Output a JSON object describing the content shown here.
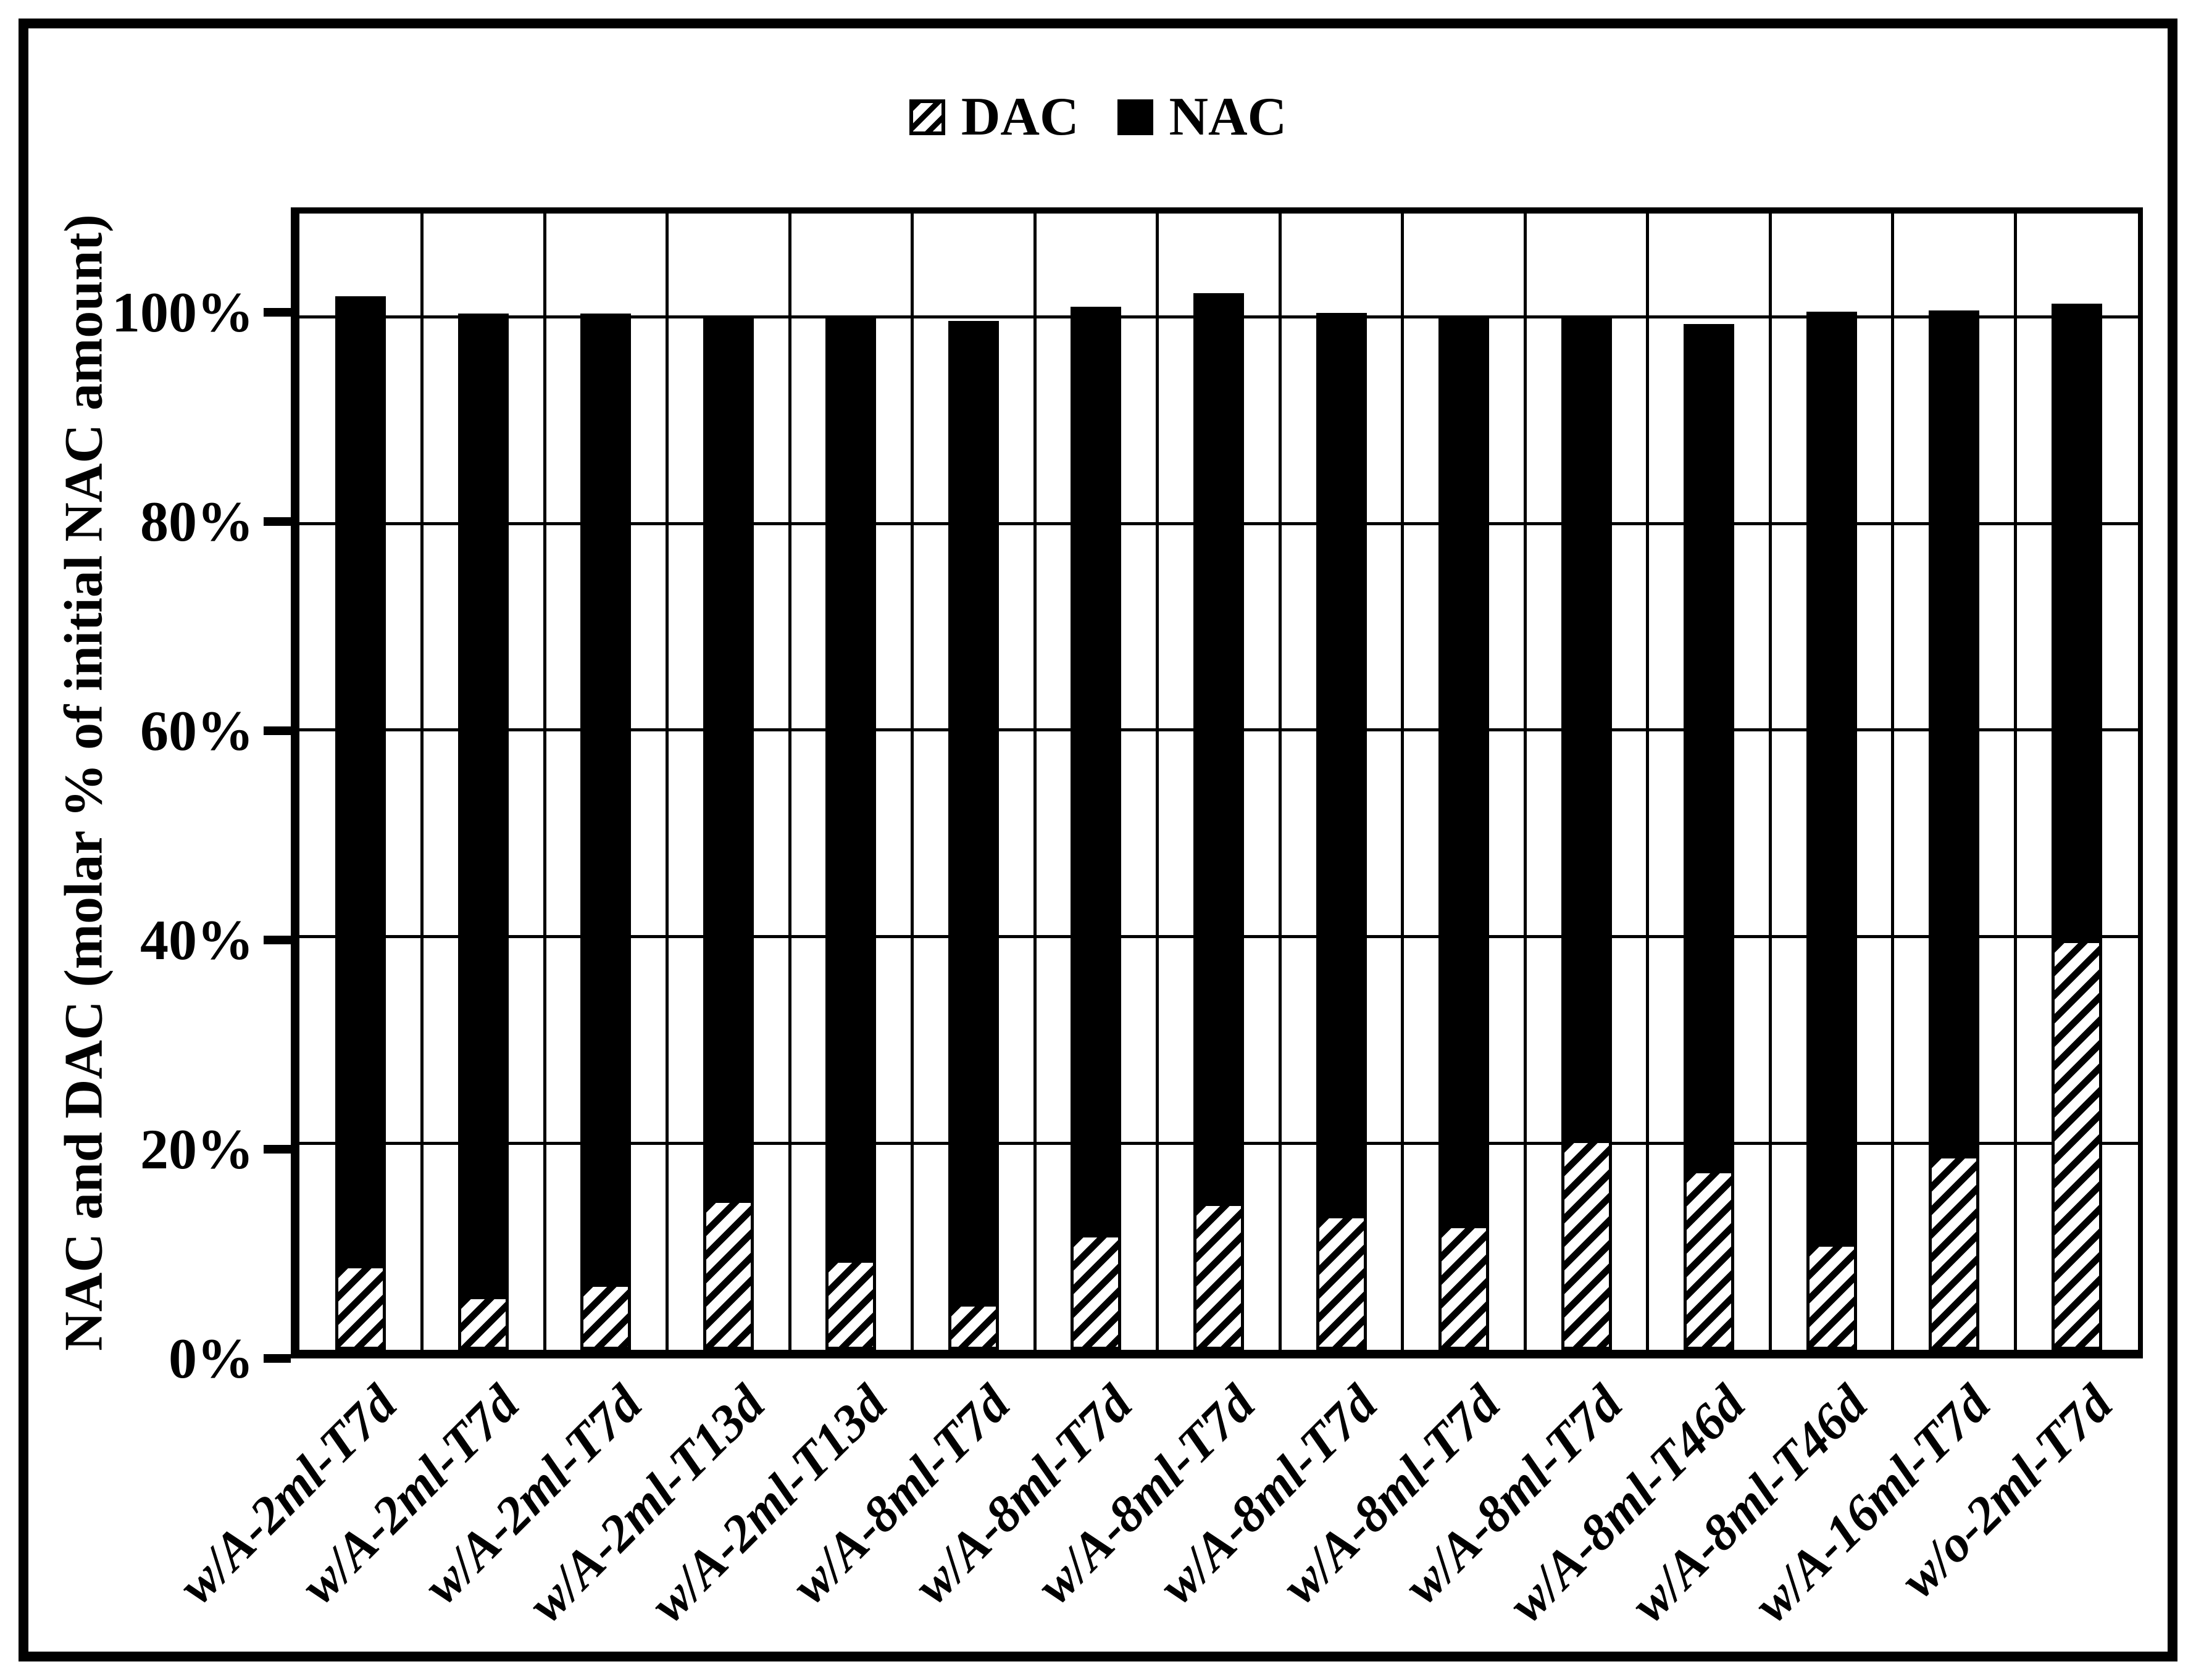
{
  "figure": {
    "background_color": "#ffffff",
    "foreground_color": "#000000",
    "border": "solid black frame"
  },
  "legend": {
    "position": "top-center",
    "items": [
      {
        "label": "DAC",
        "swatch": "diagonal-hatch"
      },
      {
        "label": "NAC",
        "swatch": "solid-black"
      }
    ]
  },
  "y_axis": {
    "title": "NAC and DAC (molar % of initial NAC amount)",
    "tick_labels": [
      "0%",
      "20%",
      "40%",
      "60%",
      "80%",
      "100%"
    ]
  },
  "chart_data": {
    "type": "bar",
    "stacked": true,
    "title": "",
    "xlabel": "",
    "ylabel": "NAC and DAC (molar % of initial NAC amount)",
    "ylim": [
      0,
      110
    ],
    "grid": true,
    "legend_position": "top-center",
    "categories": [
      "w/A-2ml-T7d",
      "w/A-2ml-T7d",
      "w/A-2ml-T7d",
      "w/A-2ml-T13d",
      "w/A-2ml-T13d",
      "w/A-8ml-T7d",
      "w/A-8ml-T7d",
      "w/A-8ml-T7d",
      "w/A-8ml-T7d",
      "w/A-8ml-T7d",
      "w/A-8ml-T7d",
      "w/A-8ml-T46d",
      "w/A-8ml-T46d",
      "w/A-16ml-T7d",
      "w/o-2ml-T7d"
    ],
    "yticks": [
      {
        "label": "0%",
        "value": 0
      },
      {
        "label": "20%",
        "value": 20
      },
      {
        "label": "40%",
        "value": 40
      },
      {
        "label": "60%",
        "value": 60
      },
      {
        "label": "80%",
        "value": 80
      },
      {
        "label": "100%",
        "value": 100
      }
    ],
    "series": [
      {
        "name": "DAC",
        "style": "diagonal-hatch",
        "values": [
          8.2,
          5.2,
          6.4,
          14.5,
          8.7,
          4.5,
          11.2,
          14.2,
          13.0,
          12.1,
          20.3,
          17.4,
          10.3,
          18.8,
          39.7
        ]
      },
      {
        "name": "NAC",
        "style": "solid-black",
        "values": [
          93.8,
          95.1,
          93.9,
          85.5,
          91.4,
          95.1,
          89.8,
          88.1,
          87.4,
          87.9,
          79.7,
          81.9,
          90.2,
          81.8,
          61.6
        ]
      }
    ],
    "colors": {
      "bar": "#000000",
      "background": "#ffffff"
    }
  }
}
